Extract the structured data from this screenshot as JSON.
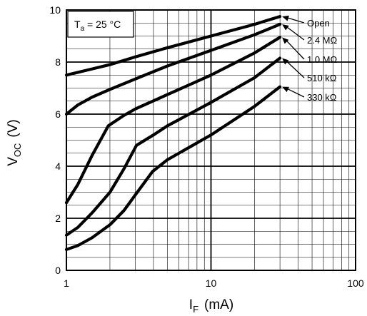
{
  "chart_data": {
    "type": "line",
    "x_scale": "log",
    "y_scale": "linear",
    "xlim": [
      1,
      100
    ],
    "ylim": [
      0,
      10
    ],
    "x_ticks": [
      "1",
      "10",
      "100"
    ],
    "y_ticks": [
      "0",
      "2",
      "4",
      "6",
      "8",
      "10"
    ],
    "xlabel": {
      "main": "I",
      "sub": "F",
      "unit": "(mA)"
    },
    "ylabel": {
      "main": "V",
      "sub": "OC",
      "unit": "(V)"
    },
    "annotation": {
      "pre": "T",
      "sub": "a",
      "post": " = 25 °C"
    },
    "grid": true,
    "series": [
      {
        "name": "Open",
        "points": [
          [
            1,
            7.5
          ],
          [
            2,
            7.9
          ],
          [
            3,
            8.2
          ],
          [
            5,
            8.55
          ],
          [
            10,
            9.0
          ],
          [
            20,
            9.45
          ],
          [
            30,
            9.75
          ]
        ]
      },
      {
        "name": "2.4 MΩ",
        "points": [
          [
            1,
            6.0
          ],
          [
            1.2,
            6.35
          ],
          [
            1.5,
            6.65
          ],
          [
            2,
            6.95
          ],
          [
            3,
            7.35
          ],
          [
            5,
            7.85
          ],
          [
            10,
            8.45
          ],
          [
            20,
            9.05
          ],
          [
            30,
            9.45
          ]
        ]
      },
      {
        "name": "1.0 MΩ",
        "points": [
          [
            1,
            2.6
          ],
          [
            1.2,
            3.3
          ],
          [
            1.5,
            4.4
          ],
          [
            1.95,
            5.55
          ],
          [
            2.5,
            5.95
          ],
          [
            3,
            6.2
          ],
          [
            5,
            6.75
          ],
          [
            10,
            7.5
          ],
          [
            20,
            8.35
          ],
          [
            30,
            8.95
          ]
        ]
      },
      {
        "name": "510 kΩ",
        "points": [
          [
            1,
            1.35
          ],
          [
            1.2,
            1.65
          ],
          [
            1.5,
            2.2
          ],
          [
            2,
            3.0
          ],
          [
            2.5,
            3.9
          ],
          [
            3.05,
            4.8
          ],
          [
            4,
            5.2
          ],
          [
            5,
            5.55
          ],
          [
            10,
            6.45
          ],
          [
            20,
            7.4
          ],
          [
            30,
            8.15
          ]
        ]
      },
      {
        "name": "330 kΩ",
        "points": [
          [
            1,
            0.8
          ],
          [
            1.2,
            0.95
          ],
          [
            1.5,
            1.25
          ],
          [
            2,
            1.75
          ],
          [
            2.5,
            2.3
          ],
          [
            3,
            2.9
          ],
          [
            3.95,
            3.8
          ],
          [
            5,
            4.25
          ],
          [
            10,
            5.2
          ],
          [
            20,
            6.3
          ],
          [
            30,
            7.05
          ]
        ]
      }
    ],
    "legend_labels": [
      "Open",
      "2.4 MΩ",
      "1.0 MΩ",
      "510 kΩ",
      "330 kΩ"
    ]
  }
}
